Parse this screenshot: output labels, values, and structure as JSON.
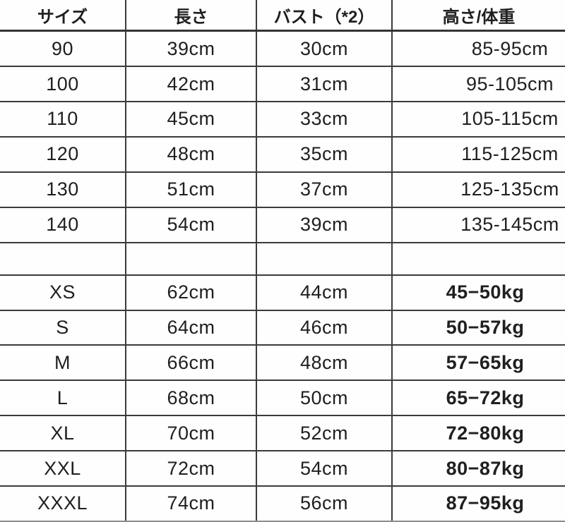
{
  "chart_data": {
    "type": "table",
    "title": "",
    "columns": [
      "サイズ",
      "長さ",
      "バスト（*2）",
      "高さ/体重"
    ],
    "rows": [
      [
        "90",
        "39cm",
        "30cm",
        "85-95cm"
      ],
      [
        "100",
        "42cm",
        "31cm",
        "95-105cm"
      ],
      [
        "110",
        "45cm",
        "33cm",
        "105-115cm"
      ],
      [
        "120",
        "48cm",
        "35cm",
        "115-125cm"
      ],
      [
        "130",
        "51cm",
        "37cm",
        "125-135cm"
      ],
      [
        "140",
        "54cm",
        "39cm",
        "135-145cm"
      ],
      [
        "",
        "",
        "",
        ""
      ],
      [
        "XS",
        "62cm",
        "44cm",
        "45−50kg"
      ],
      [
        "S",
        "64cm",
        "46cm",
        "50−57kg"
      ],
      [
        "M",
        "66cm",
        "48cm",
        "57−65kg"
      ],
      [
        "L",
        "68cm",
        "50cm",
        "65−72kg"
      ],
      [
        "XL",
        "70cm",
        "52cm",
        "72−80kg"
      ],
      [
        "XXL",
        "72cm",
        "54cm",
        "80−87kg"
      ],
      [
        "XXXL",
        "74cm",
        "56cm",
        "87−95kg"
      ]
    ]
  },
  "colors": {
    "text": "#1f1f1f",
    "border": "#3b3b3b",
    "background": "#fefefe"
  }
}
